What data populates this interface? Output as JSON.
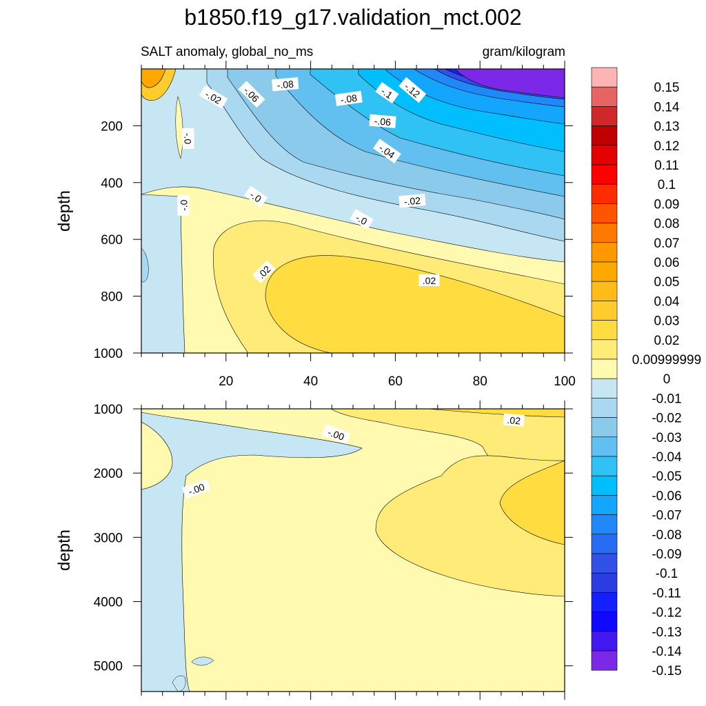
{
  "title": "b1850.f19_g17.validation_mct.002",
  "subtitle_left": "SALT anomaly, global_no_ms",
  "subtitle_right": "gram/kilogram",
  "chart_data": [
    {
      "type": "contour",
      "panel": "top",
      "ylabel": "depth",
      "xlim": [
        0,
        100
      ],
      "ylim": [
        1000,
        0
      ],
      "x_ticks": [
        "20",
        "40",
        "60",
        "80",
        "100"
      ],
      "y_ticks": [
        {
          "v": 200,
          "label": "200"
        },
        {
          "v": 400,
          "label": "400"
        },
        {
          "v": 600,
          "label": "600"
        },
        {
          "v": 800,
          "label": "800"
        },
        {
          "v": 1000,
          "label": "1000"
        }
      ],
      "contour_labels": [
        {
          "text": "-.02",
          "x": 17,
          "y": 100,
          "rot": 30
        },
        {
          "text": "-.06",
          "x": 26,
          "y": 90,
          "rot": 45
        },
        {
          "text": "-.08",
          "x": 34,
          "y": 55,
          "rot": -5
        },
        {
          "text": "-.08",
          "x": 49,
          "y": 105,
          "rot": -8
        },
        {
          "text": "-.1",
          "x": 58,
          "y": 85,
          "rot": 35
        },
        {
          "text": "-.12",
          "x": 64,
          "y": 75,
          "rot": 40
        },
        {
          "text": "-.06",
          "x": 57,
          "y": 185,
          "rot": 5
        },
        {
          "text": "-.04",
          "x": 58,
          "y": 290,
          "rot": 35
        },
        {
          "text": "-.0",
          "x": 11,
          "y": 245,
          "rot": 90
        },
        {
          "text": "-.0",
          "x": 27,
          "y": 450,
          "rot": 35
        },
        {
          "text": "-.0",
          "x": 10,
          "y": 480,
          "rot": -90
        },
        {
          "text": "-.02",
          "x": 64,
          "y": 465,
          "rot": -5
        },
        {
          "text": "-.0",
          "x": 52,
          "y": 530,
          "rot": 30
        },
        {
          "text": ".02",
          "x": 29,
          "y": 715,
          "rot": -45
        },
        {
          "text": ".02",
          "x": 68,
          "y": 745,
          "rot": 0
        }
      ]
    },
    {
      "type": "contour",
      "panel": "bottom",
      "ylabel": "depth",
      "xlim": [
        0,
        100
      ],
      "ylim": [
        5400,
        1000
      ],
      "y_ticks": [
        {
          "v": 1000,
          "label": "1000"
        },
        {
          "v": 2000,
          "label": "2000"
        },
        {
          "v": 3000,
          "label": "3000"
        },
        {
          "v": 4000,
          "label": "4000"
        },
        {
          "v": 5000,
          "label": "5000"
        }
      ],
      "contour_labels": [
        {
          "text": "-.00",
          "x": 46,
          "y": 1400,
          "rot": 20
        },
        {
          "text": "-.00",
          "x": 13,
          "y": 2250,
          "rot": -20
        },
        {
          "text": ".02",
          "x": 88,
          "y": 1180,
          "rot": 5
        }
      ]
    }
  ],
  "colorbar": {
    "labels": [
      "0.15",
      "0.14",
      "0.13",
      "0.12",
      "0.11",
      "0.1",
      "0.09",
      "0.08",
      "0.07",
      "0.06",
      "0.05",
      "0.04",
      "0.03",
      "0.02",
      "0.00999999",
      "0",
      "-0.01",
      "-0.02",
      "-0.03",
      "-0.04",
      "-0.05",
      "-0.06",
      "-0.07",
      "-0.08",
      "-0.09",
      "-0.1",
      "-0.11",
      "-0.12",
      "-0.13",
      "-0.14",
      "-0.15"
    ],
    "colors": [
      "#FFB4B4",
      "#E86464",
      "#D02828",
      "#C00000",
      "#E40000",
      "#FF0000",
      "#FF2C00",
      "#FF5500",
      "#FF7800",
      "#FF9800",
      "#FFA800",
      "#FFBB18",
      "#FFCC2E",
      "#FFDD40",
      "#FFEC78",
      "#FFFAB0",
      "#C6E6F4",
      "#A9D8F0",
      "#8CCAEC",
      "#62C0F0",
      "#30C2F4",
      "#00BEFF",
      "#14A6FF",
      "#2088F8",
      "#286CF4",
      "#3050E8",
      "#2C3CE0",
      "#1420FF",
      "#1008FF",
      "#4418F0",
      "#7C28E8"
    ]
  }
}
